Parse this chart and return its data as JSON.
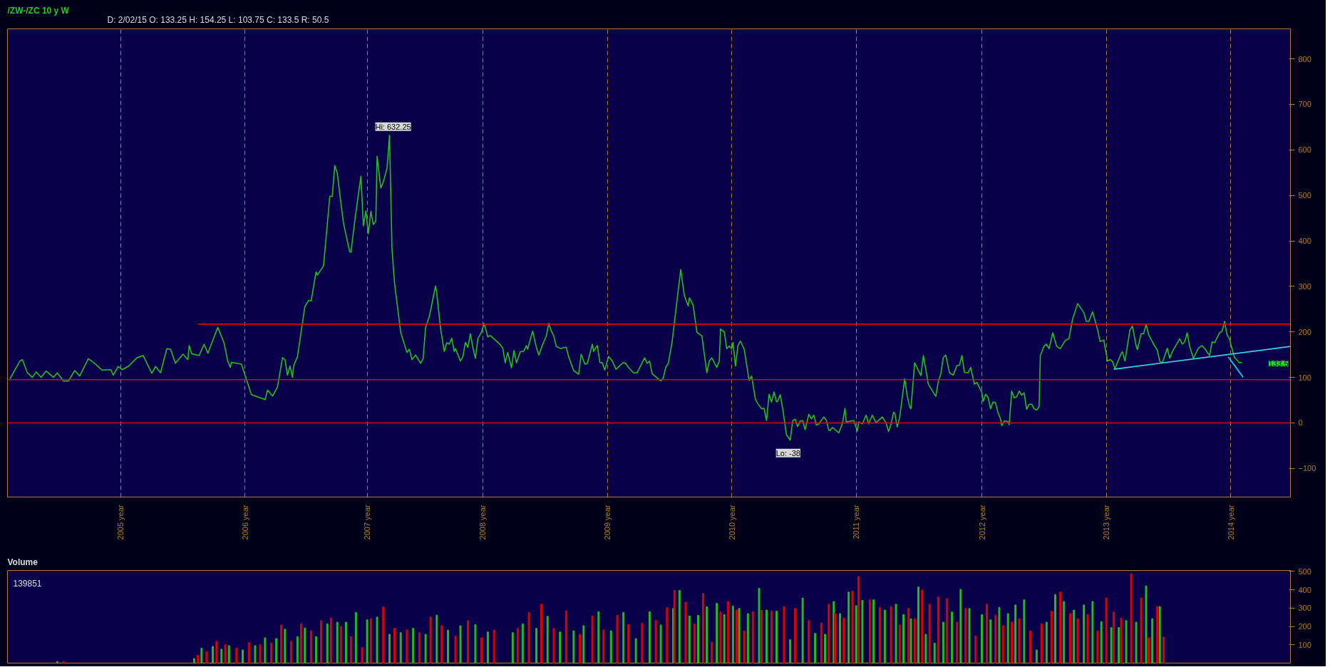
{
  "chart_data": [
    {
      "type": "line",
      "title": "/ZW-/ZC 10 y W",
      "subtitle": "D: 2/02/15   O: 133.25   H: 154.25   L: 103.75   C: 133.5   R: 50.5",
      "xlim": [
        2004.09,
        2014.4
      ],
      "ylim": [
        -163,
        866
      ],
      "xticks": [
        {
          "value": 2005.0,
          "label": "2005 year"
        },
        {
          "value": 2006.0,
          "label": "2006 year"
        },
        {
          "value": 2006.98,
          "label": "2007 year"
        },
        {
          "value": 2007.91,
          "label": "2008 year"
        },
        {
          "value": 2008.91,
          "label": "2009 year"
        },
        {
          "value": 2009.91,
          "label": "2010 year"
        },
        {
          "value": 2010.91,
          "label": "2011 year"
        },
        {
          "value": 2011.92,
          "label": "2012 year"
        },
        {
          "value": 2012.92,
          "label": "2013 year"
        },
        {
          "value": 2013.92,
          "label": "2014 year"
        }
      ],
      "yticks": [
        -100,
        0,
        100,
        200,
        300,
        400,
        500,
        600,
        700,
        800
      ],
      "grid": "x",
      "ref_lines": [
        {
          "axis": "y",
          "value": 95,
          "color": "#e00000"
        },
        {
          "axis": "y",
          "value": 0,
          "color": "#e00000"
        }
      ],
      "annotations": [
        {
          "text": "Hi: 632.25",
          "x": 2007.16,
          "y": 632.25
        },
        {
          "text": "Lo: -38",
          "x": 2010.38,
          "y": -38
        },
        "133.5"
      ],
      "series": [
        {
          "color": "#1fc01f",
          "x": [
            2004.11,
            2004.19,
            2004.21,
            2004.25,
            2004.29,
            2004.32,
            2004.36,
            2004.4,
            2004.46,
            2004.49,
            2004.54,
            2004.58,
            2004.63,
            2004.67,
            2004.74,
            2004.79,
            2004.85,
            2004.92,
            2004.94,
            2004.98,
            2005.01,
            2005.06,
            2005.13,
            2005.18,
            2005.25,
            2005.28,
            2005.32,
            2005.37,
            2005.4,
            2005.44,
            2005.5,
            2005.54,
            2005.55,
            2005.57,
            2005.63,
            2005.67,
            2005.7,
            2005.78,
            2005.83,
            2005.86,
            2005.88,
            2005.89,
            2005.97,
            2006.05,
            2006.1,
            2006.16,
            2006.18,
            2006.22,
            2006.26,
            2006.3,
            2006.32,
            2006.34,
            2006.36,
            2006.38,
            2006.39,
            2006.42,
            2006.48,
            2006.51,
            2006.53,
            2006.57,
            2006.58,
            2006.63,
            2006.68,
            2006.7,
            2006.72,
            2006.74,
            2006.76,
            2006.79,
            2006.84,
            2006.85,
            2006.88,
            2006.93,
            2006.95,
            2006.97,
            2006.99,
            2007.01,
            2007.03,
            2007.05,
            2007.06,
            2007.09,
            2007.11,
            2007.14,
            2007.16,
            2007.18,
            2007.2,
            2007.25,
            2007.3,
            2007.32,
            2007.34,
            2007.37,
            2007.41,
            2007.43,
            2007.45,
            2007.48,
            2007.53,
            2007.54,
            2007.57,
            2007.6,
            2007.62,
            2007.64,
            2007.66,
            2007.68,
            2007.69,
            2007.73,
            2007.75,
            2007.77,
            2007.79,
            2007.81,
            2007.83,
            2007.85,
            2007.87,
            2007.9,
            2007.92,
            2007.95,
            2007.97,
            2008.05,
            2008.07,
            2008.09,
            2008.11,
            2008.14,
            2008.16,
            2008.18,
            2008.21,
            2008.24,
            2008.26,
            2008.27,
            2008.31,
            2008.34,
            2008.36,
            2008.39,
            2008.42,
            2008.44,
            2008.46,
            2008.48,
            2008.5,
            2008.54,
            2008.56,
            2008.58,
            2008.6,
            2008.64,
            2008.68,
            2008.7,
            2008.73,
            2008.75,
            2008.79,
            2008.8,
            2008.83,
            2008.85,
            2008.87,
            2008.89,
            2008.92,
            2008.95,
            2008.98,
            2009.04,
            2009.06,
            2009.08,
            2009.12,
            2009.15,
            2009.21,
            2009.23,
            2009.25,
            2009.27,
            2009.34,
            2009.36,
            2009.38,
            2009.4,
            2009.43,
            2009.5,
            2009.53,
            2009.56,
            2009.57,
            2009.6,
            2009.63,
            2009.67,
            2009.71,
            2009.73,
            2009.75,
            2009.79,
            2009.81,
            2009.82,
            2009.85,
            2009.87,
            2009.89,
            2009.91,
            2009.92,
            2009.94,
            2009.96,
            2009.98,
            2010.01,
            2010.05,
            2010.07,
            2010.1,
            2010.12,
            2010.15,
            2010.17,
            2010.19,
            2010.21,
            2010.23,
            2010.25,
            2010.27,
            2010.28,
            2010.3,
            2010.32,
            2010.35,
            2010.38,
            2010.4,
            2010.42,
            2010.44,
            2010.46,
            2010.48,
            2010.5,
            2010.53,
            2010.55,
            2010.57,
            2010.59,
            2010.61,
            2010.65,
            2010.67,
            2010.69,
            2010.7,
            2010.72,
            2010.77,
            2010.8,
            2010.82,
            2010.83,
            2010.89,
            2010.92,
            2010.93,
            2010.96,
            2010.99,
            2011.01,
            2011.04,
            2011.07,
            2011.12,
            2011.15,
            2011.17,
            2011.19,
            2011.21,
            2011.22,
            2011.24,
            2011.26,
            2011.3,
            2011.32,
            2011.34,
            2011.35,
            2011.38,
            2011.43,
            2011.45,
            2011.49,
            2011.55,
            2011.57,
            2011.59,
            2011.61,
            2011.63,
            2011.66,
            2011.69,
            2011.72,
            2011.74,
            2011.76,
            2011.78,
            2011.81,
            2011.83,
            2011.86,
            2011.88,
            2011.92,
            2011.93,
            2011.95,
            2011.97,
            2011.99,
            2012.01,
            2012.03,
            2012.05,
            2012.07,
            2012.08,
            2012.1,
            2012.13,
            2012.14,
            2012.16,
            2012.18,
            2012.2,
            2012.22,
            2012.24,
            2012.26,
            2012.28,
            2012.3,
            2012.32,
            2012.34,
            2012.36,
            2012.38,
            2012.39,
            2012.42,
            2012.44,
            2012.46,
            2012.49,
            2012.52,
            2012.55,
            2012.59,
            2012.62,
            2012.65,
            2012.69,
            2012.74,
            2012.76,
            2012.78,
            2012.81,
            2012.85,
            2012.87,
            2012.9,
            2012.93,
            2012.95,
            2012.97,
            2012.99,
            2013.04,
            2013.05,
            2013.07,
            2013.11,
            2013.13,
            2013.16,
            2013.17,
            2013.2,
            2013.22,
            2013.24,
            2013.26,
            2013.3,
            2013.33,
            2013.35,
            2013.37,
            2013.41,
            2013.43,
            2013.45,
            2013.51,
            2013.53,
            2013.55,
            2013.57,
            2013.59,
            2013.62,
            2013.66,
            2013.69,
            2013.72,
            2013.75,
            2013.77,
            2013.79,
            2013.83,
            2013.85,
            2013.87,
            2013.89,
            2013.91,
            2013.93,
            2013.95,
            2013.98,
            2013.99,
            2014.01
          ],
          "values": [
            97,
            136,
            139,
            110,
            100,
            112,
            100,
            114,
            100,
            110,
            92,
            92,
            115,
            103,
            141,
            131,
            116,
            117,
            105,
            124,
            117,
            124,
            143,
            148,
            109,
            124,
            110,
            163,
            162,
            131,
            151,
            139,
            170,
            152,
            148,
            173,
            153,
            210,
            176,
            136,
            122,
            133,
            129,
            62,
            57,
            51,
            72,
            59,
            79,
            143,
            139,
            105,
            125,
            100,
            126,
            145,
            256,
            269,
            268,
            332,
            325,
            345,
            498,
            498,
            566,
            549,
            504,
            439,
            376,
            375,
            442,
            542,
            433,
            466,
            416,
            465,
            436,
            443,
            586,
            516,
            530,
            559,
            632.25,
            382,
            308,
            199,
            155,
            162,
            139,
            149,
            131,
            141,
            210,
            234,
            301,
            284,
            208,
            157,
            176,
            173,
            186,
            157,
            163,
            136,
            146,
            177,
            166,
            196,
            165,
            142,
            185,
            200,
            219,
            189,
            192,
            172,
            164,
            132,
            155,
            121,
            159,
            132,
            156,
            158,
            170,
            162,
            202,
            166,
            149,
            172,
            191,
            219,
            202,
            191,
            168,
            163,
            166,
            166,
            145,
            115,
            107,
            151,
            129,
            131,
            173,
            157,
            170,
            133,
            132,
            116,
            146,
            136,
            118,
            133,
            130,
            122,
            110,
            110,
            143,
            131,
            136,
            108,
            92,
            99,
            122,
            131,
            176,
            337,
            279,
            257,
            275,
            259,
            199,
            191,
            110,
            136,
            143,
            122,
            136,
            206,
            200,
            163,
            169,
            163,
            177,
            125,
            170,
            180,
            162,
            93,
            103,
            52,
            42,
            31,
            32,
            5,
            63,
            46,
            68,
            46,
            48,
            62,
            31,
            -26,
            -38,
            5,
            8,
            -8,
            4,
            5,
            -15,
            19,
            9,
            17,
            -5,
            -2,
            13,
            6,
            -16,
            -17,
            -10,
            -22,
            -1,
            32,
            2,
            5,
            -18,
            2,
            -2,
            17,
            -2,
            17,
            0,
            13,
            0,
            -19,
            -3,
            23,
            22,
            -9,
            13,
            97,
            60,
            35,
            31,
            132,
            104,
            148,
            85,
            58,
            91,
            107,
            144,
            149,
            110,
            105,
            126,
            127,
            148,
            111,
            110,
            122,
            85,
            89,
            67,
            47,
            63,
            56,
            31,
            46,
            44,
            22,
            9,
            -6,
            4,
            3,
            -4,
            70,
            55,
            57,
            70,
            61,
            66,
            30,
            41,
            41,
            31,
            28,
            36,
            148,
            169,
            173,
            163,
            198,
            169,
            163,
            181,
            185,
            229,
            262,
            242,
            223,
            223,
            244,
            205,
            179,
            182,
            136,
            139,
            135,
            119,
            153,
            156,
            136,
            204,
            213,
            169,
            161,
            196,
            196,
            217,
            194,
            173,
            160,
            135,
            132,
            164,
            142,
            156,
            185,
            173,
            178,
            198,
            168,
            142,
            164,
            170,
            160,
            148,
            178,
            176,
            198,
            201,
            223,
            194,
            185,
            163,
            144,
            135,
            132,
            133.5
          ]
        },
        {
          "color": "#e00000",
          "x": [
            2005.62,
            2014.4
          ],
          "values": [
            217,
            217
          ]
        },
        {
          "color": "#33d6e6",
          "x": [
            2012.98,
            2014.4
          ],
          "values": [
            118,
            168
          ]
        },
        {
          "color": "#00e5ee",
          "x": [
            2013.9,
            2014.02
          ],
          "values": [
            145,
            100
          ]
        }
      ]
    },
    {
      "type": "bar",
      "title": "Volume",
      "annotations": [
        "139851"
      ],
      "tick_labels": "y",
      "grid": false,
      "xlim": [
        2004.09,
        2014.4
      ],
      "ylim": [
        0,
        505
      ],
      "yticks": [
        100,
        200,
        300,
        400,
        500
      ],
      "x": [
        2004.49,
        2004.54,
        2005.59,
        2005.62,
        2005.65,
        2005.69,
        2005.74,
        2005.77,
        2005.81,
        2005.84,
        2005.87,
        2005.93,
        2005.98,
        2006.03,
        2006.08,
        2006.12,
        2006.16,
        2006.21,
        2006.25,
        2006.29,
        2006.32,
        2006.37,
        2006.42,
        2006.45,
        2006.48,
        2006.53,
        2006.57,
        2006.61,
        2006.66,
        2006.69,
        2006.74,
        2006.77,
        2006.81,
        2006.85,
        2006.89,
        2006.94,
        2006.98,
        2007.01,
        2007.06,
        2007.11,
        2007.16,
        2007.2,
        2007.25,
        2007.3,
        2007.35,
        2007.4,
        2007.45,
        2007.49,
        2007.54,
        2007.58,
        2007.63,
        2007.69,
        2007.73,
        2007.79,
        2007.85,
        2007.9,
        2007.95,
        2008.0,
        2008.15,
        2008.19,
        2008.23,
        2008.28,
        2008.34,
        2008.38,
        2008.43,
        2008.48,
        2008.53,
        2008.58,
        2008.64,
        2008.69,
        2008.72,
        2008.79,
        2008.84,
        2008.88,
        2008.94,
        2008.99,
        2009.04,
        2009.08,
        2009.14,
        2009.19,
        2009.25,
        2009.3,
        2009.34,
        2009.39,
        2009.44,
        2009.45,
        2009.49,
        2009.54,
        2009.57,
        2009.61,
        2009.64,
        2009.68,
        2009.71,
        2009.75,
        2009.79,
        2009.82,
        2009.85,
        2009.88,
        2009.92,
        2009.95,
        2009.97,
        2010.01,
        2010.04,
        2010.08,
        2010.13,
        2010.15,
        2010.19,
        2010.23,
        2010.27,
        2010.33,
        2010.38,
        2010.42,
        2010.48,
        2010.53,
        2010.58,
        2010.63,
        2010.66,
        2010.69,
        2010.73,
        2010.74,
        2010.78,
        2010.81,
        2010.85,
        2010.88,
        2010.91,
        2010.93,
        2010.96,
        2011.02,
        2011.05,
        2011.1,
        2011.14,
        2011.19,
        2011.23,
        2011.26,
        2011.29,
        2011.33,
        2011.35,
        2011.38,
        2011.41,
        2011.44,
        2011.47,
        2011.5,
        2011.54,
        2011.57,
        2011.61,
        2011.64,
        2011.68,
        2011.72,
        2011.75,
        2011.79,
        2011.82,
        2011.87,
        2011.92,
        2011.96,
        2011.99,
        2012.03,
        2012.06,
        2012.09,
        2012.13,
        2012.16,
        2012.19,
        2012.22,
        2012.26,
        2012.31,
        2012.36,
        2012.4,
        2012.44,
        2012.48,
        2012.51,
        2012.55,
        2012.58,
        2012.63,
        2012.66,
        2012.69,
        2012.74,
        2012.77,
        2012.81,
        2012.85,
        2012.88,
        2012.92,
        2012.96,
        2012.98,
        2013.02,
        2013.04,
        2013.08,
        2013.12,
        2013.16,
        2013.2,
        2013.24,
        2013.26,
        2013.29,
        2013.33,
        2013.35,
        2013.38
      ],
      "values": [
        9,
        9,
        25,
        43,
        81,
        62,
        91,
        119,
        76,
        100,
        95,
        81,
        72,
        113,
        95,
        100,
        138,
        110,
        134,
        208,
        185,
        119,
        144,
        214,
        191,
        176,
        144,
        231,
        214,
        246,
        223,
        200,
        223,
        144,
        276,
        85,
        236,
        242,
        251,
        306,
        157,
        189,
        166,
        181,
        189,
        166,
        157,
        251,
        261,
        204,
        180,
        147,
        204,
        231,
        210,
        138,
        170,
        180,
        166,
        189,
        214,
        276,
        189,
        321,
        255,
        189,
        170,
        285,
        176,
        157,
        204,
        257,
        280,
        181,
        176,
        261,
        276,
        210,
        134,
        217,
        280,
        232,
        208,
        302,
        298,
        396,
        396,
        332,
        257,
        213,
        260,
        379,
        308,
        113,
        326,
        279,
        264,
        336,
        311,
        289,
        298,
        175,
        270,
        279,
        408,
        289,
        289,
        283,
        283,
        308,
        128,
        298,
        355,
        232,
        162,
        219,
        157,
        321,
        336,
        270,
        270,
        245,
        387,
        392,
        313,
        472,
        342,
        345,
        345,
        304,
        289,
        308,
        321,
        208,
        264,
        298,
        242,
        242,
        415,
        398,
        157,
        321,
        109,
        360,
        223,
        351,
        279,
        223,
        402,
        298,
        298,
        147,
        264,
        321,
        236,
        260,
        304,
        204,
        270,
        223,
        317,
        242,
        345,
        175,
        72,
        213,
        223,
        283,
        374,
        387,
        336,
        270,
        289,
        242,
        317,
        264,
        336,
        175,
        226,
        355,
        194,
        279,
        194,
        245,
        232,
        487,
        223,
        355,
        421,
        138,
        242,
        308,
        308,
        142
      ],
      "colors": [
        "#1fc01f",
        "#e00000",
        "#1fc01f",
        "#e00000",
        "#1fc01f",
        "#e00000",
        "#1fc01f",
        "#e00000",
        "#1fc01f",
        "#e00000",
        "#1fc01f",
        "#e00000",
        "#1fc01f",
        "#e00000",
        "#1fc01f",
        "#e00000",
        "#1fc01f",
        "#e00000",
        "#1fc01f",
        "#e00000",
        "#1fc01f",
        "#e00000",
        "#1fc01f",
        "#e00000",
        "#1fc01f",
        "#e00000",
        "#1fc01f",
        "#e00000",
        "#1fc01f",
        "#e00000",
        "#1fc01f",
        "#e00000",
        "#1fc01f",
        "#e00000",
        "#1fc01f",
        "#e00000",
        "#1fc01f",
        "#e00000",
        "#1fc01f",
        "#e00000",
        "#1fc01f",
        "#e00000",
        "#1fc01f",
        "#e00000",
        "#1fc01f",
        "#e00000",
        "#1fc01f",
        "#e00000",
        "#1fc01f",
        "#e00000",
        "#1fc01f",
        "#e00000",
        "#1fc01f",
        "#e00000",
        "#1fc01f",
        "#e00000",
        "#1fc01f",
        "#e00000",
        "#1fc01f",
        "#e00000",
        "#1fc01f",
        "#e00000",
        "#1fc01f",
        "#e00000",
        "#1fc01f",
        "#e00000",
        "#1fc01f",
        "#e00000",
        "#1fc01f",
        "#e00000",
        "#1fc01f",
        "#e00000",
        "#1fc01f",
        "#e00000",
        "#1fc01f",
        "#e00000",
        "#1fc01f",
        "#e00000",
        "#1fc01f",
        "#e00000",
        "#1fc01f",
        "#e00000",
        "#1fc01f",
        "#e00000",
        "#1fc01f",
        "#e00000",
        "#1fc01f",
        "#e00000",
        "#1fc01f",
        "#e00000",
        "#1fc01f",
        "#e00000",
        "#1fc01f",
        "#e00000",
        "#1fc01f",
        "#e00000",
        "#1fc01f",
        "#e00000",
        "#1fc01f",
        "#e00000",
        "#1fc01f",
        "#e00000",
        "#1fc01f",
        "#e00000",
        "#1fc01f",
        "#e00000",
        "#1fc01f",
        "#e00000",
        "#1fc01f",
        "#e00000",
        "#1fc01f",
        "#e00000",
        "#1fc01f",
        "#e00000",
        "#1fc01f",
        "#e00000",
        "#1fc01f",
        "#e00000",
        "#1fc01f",
        "#e00000",
        "#1fc01f",
        "#e00000",
        "#1fc01f",
        "#e00000",
        "#1fc01f",
        "#e00000",
        "#1fc01f",
        "#e00000",
        "#1fc01f",
        "#e00000",
        "#1fc01f",
        "#e00000",
        "#1fc01f",
        "#e00000",
        "#1fc01f",
        "#e00000",
        "#1fc01f",
        "#e00000",
        "#1fc01f",
        "#e00000",
        "#1fc01f",
        "#e00000",
        "#1fc01f",
        "#e00000",
        "#1fc01f",
        "#e00000",
        "#1fc01f",
        "#e00000",
        "#1fc01f",
        "#e00000",
        "#1fc01f",
        "#e00000",
        "#1fc01f",
        "#e00000",
        "#1fc01f",
        "#e00000",
        "#1fc01f",
        "#e00000",
        "#1fc01f",
        "#e00000",
        "#1fc01f",
        "#e00000",
        "#1fc01f",
        "#e00000",
        "#1fc01f",
        "#e00000",
        "#1fc01f",
        "#e00000",
        "#1fc01f",
        "#e00000",
        "#1fc01f",
        "#e00000",
        "#1fc01f",
        "#e00000",
        "#1fc01f",
        "#e00000",
        "#1fc01f",
        "#e00000",
        "#1fc01f",
        "#e00000",
        "#1fc01f",
        "#e00000",
        "#1fc01f",
        "#e00000",
        "#1fc01f",
        "#e00000",
        "#1fc01f",
        "#e00000",
        "#1fc01f",
        "#e00000",
        "#1fc01f",
        "#e00000",
        "#1fc01f",
        "#e00000"
      ]
    }
  ]
}
